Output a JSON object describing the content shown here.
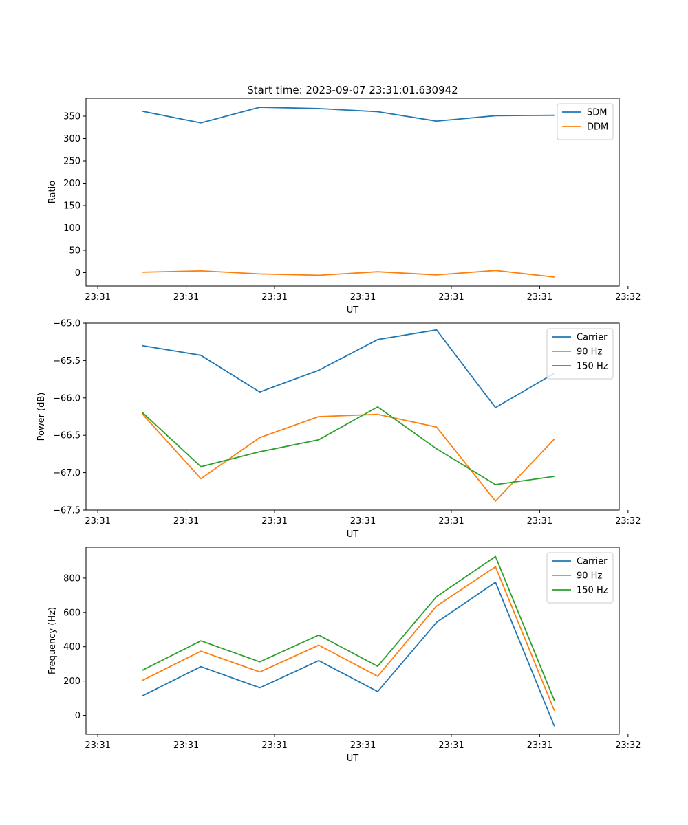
{
  "title": "Start time: 2023-09-07 23:31:01.630942",
  "chart_data": [
    {
      "type": "line",
      "title": "Start time: 2023-09-07 23:31:01.630942",
      "xlabel": "UT",
      "ylabel": "Ratio",
      "xlim": [
        -0.75,
        8.3
      ],
      "ylim": [
        -30,
        390
      ],
      "x_ticks": [
        -0.55,
        0.95,
        2.45,
        3.95,
        5.45,
        6.95,
        8.45
      ],
      "x_tick_labels": [
        "23:31",
        "23:31",
        "23:31",
        "23:31",
        "23:31",
        "23:31",
        "23:32"
      ],
      "y_ticks": [
        0,
        50,
        100,
        150,
        200,
        250,
        300,
        350
      ],
      "y_tick_labels": [
        "0",
        "50",
        "100",
        "150",
        "200",
        "250",
        "300",
        "350"
      ],
      "legend": "top-right",
      "x": [
        0.2,
        1.2,
        2.2,
        3.2,
        4.2,
        5.2,
        6.2,
        7.2
      ],
      "series": [
        {
          "name": "SDM",
          "color": "#1f77b4",
          "values": [
            361,
            335,
            370,
            367,
            360,
            339,
            351,
            352
          ]
        },
        {
          "name": "DDM",
          "color": "#ff7f0e",
          "values": [
            1,
            4,
            -3,
            -6,
            2,
            -5,
            5,
            -10
          ]
        }
      ]
    },
    {
      "type": "line",
      "title": "",
      "xlabel": "UT",
      "ylabel": "Power (dB)",
      "xlim": [
        -0.75,
        8.3
      ],
      "ylim": [
        -67.5,
        -65.0
      ],
      "x_ticks": [
        -0.55,
        0.95,
        2.45,
        3.95,
        5.45,
        6.95,
        8.45
      ],
      "x_tick_labels": [
        "23:31",
        "23:31",
        "23:31",
        "23:31",
        "23:31",
        "23:31",
        "23:32"
      ],
      "y_ticks": [
        -67.5,
        -67.0,
        -66.5,
        -66.0,
        -65.5,
        -65.0
      ],
      "y_tick_labels": [
        "−67.5",
        "−67.0",
        "−66.5",
        "−66.0",
        "−65.5",
        "−65.0"
      ],
      "legend": "top-right",
      "x": [
        0.2,
        1.2,
        2.2,
        3.2,
        4.2,
        5.2,
        6.2,
        7.2
      ],
      "series": [
        {
          "name": "Carrier",
          "color": "#1f77b4",
          "values": [
            -65.3,
            -65.43,
            -65.92,
            -65.63,
            -65.22,
            -65.09,
            -66.13,
            -65.67
          ]
        },
        {
          "name": "90 Hz",
          "color": "#ff7f0e",
          "values": [
            -66.21,
            -67.08,
            -66.53,
            -66.25,
            -66.22,
            -66.39,
            -67.38,
            -66.55
          ]
        },
        {
          "name": "150 Hz",
          "color": "#2ca02c",
          "values": [
            -66.19,
            -66.92,
            -66.72,
            -66.56,
            -66.12,
            -66.68,
            -67.16,
            -67.05
          ]
        }
      ]
    },
    {
      "type": "line",
      "title": "",
      "xlabel": "UT",
      "ylabel": "Frequency (Hz)",
      "xlim": [
        -0.75,
        8.3
      ],
      "ylim": [
        -110,
        980
      ],
      "x_ticks": [
        -0.55,
        0.95,
        2.45,
        3.95,
        5.45,
        6.95,
        8.45
      ],
      "x_tick_labels": [
        "23:31",
        "23:31",
        "23:31",
        "23:31",
        "23:31",
        "23:31",
        "23:32"
      ],
      "y_ticks": [
        0,
        200,
        400,
        600,
        800
      ],
      "y_tick_labels": [
        "0",
        "200",
        "400",
        "600",
        "800"
      ],
      "legend": "top-right",
      "x": [
        0.2,
        1.2,
        2.2,
        3.2,
        4.2,
        5.2,
        6.2,
        7.2
      ],
      "series": [
        {
          "name": "Carrier",
          "color": "#1f77b4",
          "values": [
            113,
            284,
            161,
            319,
            139,
            542,
            776,
            -63
          ]
        },
        {
          "name": "90 Hz",
          "color": "#ff7f0e",
          "values": [
            203,
            374,
            253,
            409,
            228,
            637,
            866,
            27
          ]
        },
        {
          "name": "150 Hz",
          "color": "#2ca02c",
          "values": [
            262,
            434,
            312,
            468,
            286,
            692,
            926,
            86
          ]
        }
      ]
    }
  ]
}
